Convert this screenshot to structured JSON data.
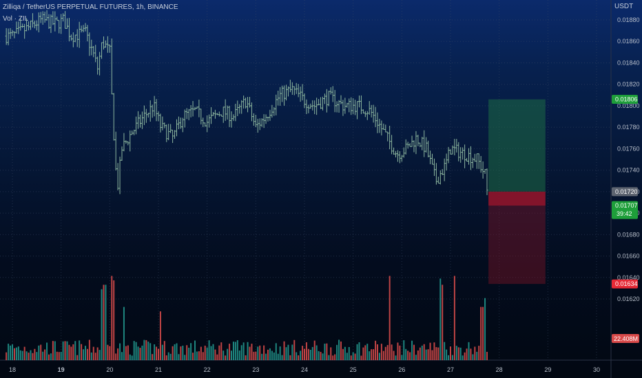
{
  "header": {
    "symbol_line": "Zilliqa / TetherUS PERPETUAL FUTURES, 1h, BINANCE",
    "volume_line": "Vol · ZIL",
    "currency": "USDT"
  },
  "price_tags": {
    "target": "0.01806",
    "current_price": "0.01720",
    "last_price": "0.01707",
    "countdown": "39:42",
    "stop": "0.01634",
    "volume": "22.408M"
  },
  "colors": {
    "up": "#26a69a",
    "down": "#ef5350",
    "target_zone": "#1e6b45",
    "stop_zone": "#7a1426",
    "tag_green": "#1e9e3a",
    "tag_gray": "#5d6470",
    "tag_red": "#e62a36"
  },
  "chart_data": {
    "type": "ohlc",
    "title": "Zilliqa / TetherUS PERPETUAL FUTURES, 1h, BINANCE",
    "ylim": [
      0.01608,
      0.01888
    ],
    "y_ticks": [
      "0.01880",
      "0.01860",
      "0.01840",
      "0.01820",
      "0.01800",
      "0.01780",
      "0.01760",
      "0.01740",
      "0.01720",
      "0.01700",
      "0.01680",
      "0.01660",
      "0.01640",
      "0.01620"
    ],
    "x_ticks": [
      "18",
      "19",
      "20",
      "21",
      "22",
      "23",
      "24",
      "25",
      "26",
      "27",
      "28",
      "29",
      "30"
    ],
    "x_range_days": [
      18,
      30.2
    ],
    "price_path": [
      [
        18.0,
        0.01865
      ],
      [
        18.3,
        0.01872
      ],
      [
        18.6,
        0.0188
      ],
      [
        18.9,
        0.01876
      ],
      [
        19.05,
        0.0188
      ],
      [
        19.2,
        0.01865
      ],
      [
        19.5,
        0.01868
      ],
      [
        19.65,
        0.0185
      ],
      [
        19.75,
        0.01835
      ],
      [
        19.85,
        0.0186
      ],
      [
        20.0,
        0.0185
      ],
      [
        20.05,
        0.018
      ],
      [
        20.15,
        0.0172
      ],
      [
        20.25,
        0.0176
      ],
      [
        20.45,
        0.01775
      ],
      [
        20.7,
        0.0179
      ],
      [
        20.9,
        0.018
      ],
      [
        21.05,
        0.0178
      ],
      [
        21.3,
        0.0177
      ],
      [
        21.5,
        0.0179
      ],
      [
        21.75,
        0.01795
      ],
      [
        22.0,
        0.01785
      ],
      [
        22.3,
        0.01795
      ],
      [
        22.55,
        0.0179
      ],
      [
        22.8,
        0.01805
      ],
      [
        23.0,
        0.0178
      ],
      [
        23.2,
        0.0179
      ],
      [
        23.5,
        0.0181
      ],
      [
        23.75,
        0.01815
      ],
      [
        24.0,
        0.01805
      ],
      [
        24.2,
        0.018
      ],
      [
        24.5,
        0.01808
      ],
      [
        24.8,
        0.018
      ],
      [
        25.1,
        0.018
      ],
      [
        25.35,
        0.01795
      ],
      [
        25.5,
        0.01785
      ],
      [
        25.7,
        0.0177
      ],
      [
        25.9,
        0.01755
      ],
      [
        26.1,
        0.0176
      ],
      [
        26.3,
        0.0177
      ],
      [
        26.5,
        0.0176
      ],
      [
        26.7,
        0.0173
      ],
      [
        26.9,
        0.01745
      ],
      [
        27.0,
        0.0176
      ],
      [
        27.3,
        0.01755
      ],
      [
        27.55,
        0.0175
      ],
      [
        27.72,
        0.01735
      ],
      [
        27.78,
        0.01707
      ]
    ],
    "volume_spikes": [
      [
        19.85,
        0.8
      ],
      [
        19.9,
        0.85
      ],
      [
        20.05,
        0.95
      ],
      [
        20.1,
        0.9
      ],
      [
        20.3,
        0.6
      ],
      [
        21.05,
        0.55
      ],
      [
        26.8,
        0.92
      ],
      [
        26.85,
        0.85
      ],
      [
        27.1,
        0.95
      ],
      [
        25.75,
        0.95
      ],
      [
        27.65,
        0.6
      ],
      [
        27.7,
        0.7
      ]
    ],
    "position": {
      "start_day": 27.78,
      "end_day": 28.95,
      "entry": 0.0172,
      "target": 0.01806,
      "stop": 0.01634,
      "last": 0.01707
    }
  }
}
